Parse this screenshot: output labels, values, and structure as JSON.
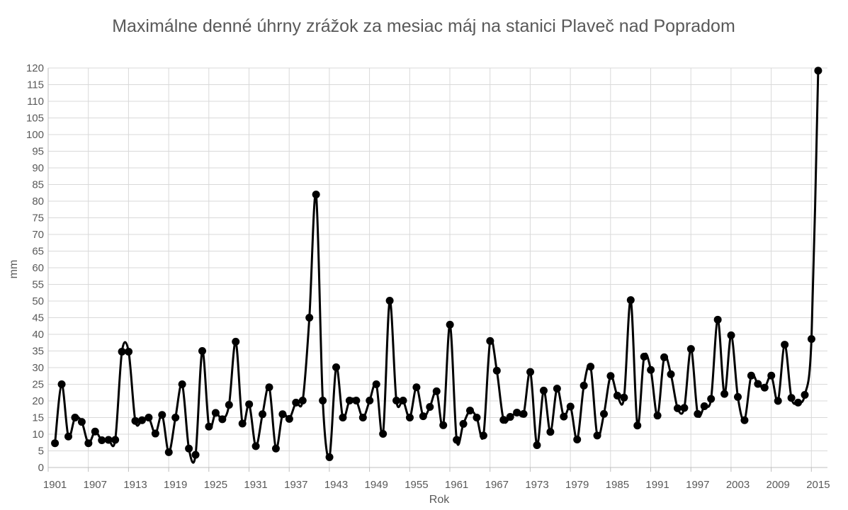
{
  "chart_data": {
    "type": "line",
    "title": "Maximálne denné úhrny zrážok za mesiac máj na stanici Plaveč nad Popradom",
    "xlabel": "Rok",
    "ylabel": "mm",
    "xlim": [
      1901,
      2015
    ],
    "ylim": [
      0,
      120
    ],
    "y_major_unit": 5,
    "x_tick_labels": [
      "1901",
      "1907",
      "1913",
      "1919",
      "1925",
      "1931",
      "1937",
      "1943",
      "1949",
      "1955",
      "1961",
      "1967",
      "1973",
      "1979",
      "1985",
      "1991",
      "1997",
      "2003",
      "2009",
      "2015"
    ],
    "grid": true,
    "legend": "none",
    "series": [
      {
        "color": "#000000",
        "x": [
          1901,
          1902,
          1903,
          1904,
          1905,
          1906,
          1907,
          1908,
          1909,
          1910,
          1911,
          1912,
          1913,
          1914,
          1915,
          1916,
          1917,
          1918,
          1919,
          1920,
          1921,
          1922,
          1923,
          1924,
          1925,
          1926,
          1927,
          1928,
          1929,
          1930,
          1931,
          1932,
          1933,
          1934,
          1935,
          1936,
          1937,
          1938,
          1939,
          1940,
          1941,
          1942,
          1943,
          1944,
          1945,
          1946,
          1947,
          1948,
          1949,
          1950,
          1951,
          1952,
          1953,
          1954,
          1955,
          1956,
          1957,
          1958,
          1959,
          1960,
          1961,
          1962,
          1963,
          1964,
          1965,
          1966,
          1967,
          1968,
          1969,
          1970,
          1971,
          1972,
          1973,
          1974,
          1975,
          1976,
          1977,
          1978,
          1979,
          1980,
          1981,
          1982,
          1983,
          1984,
          1985,
          1986,
          1987,
          1988,
          1989,
          1990,
          1991,
          1992,
          1993,
          1994,
          1995,
          1996,
          1997,
          1998,
          1999,
          2000,
          2001,
          2002,
          2003,
          2004,
          2005,
          2006,
          2007,
          2008,
          2009,
          2010,
          2011,
          2012,
          2013,
          2014,
          2015
        ],
        "values": [
          7.3,
          25,
          9.3,
          15,
          13.7,
          7.3,
          10.8,
          8.2,
          8.3,
          8.3,
          34.8,
          34.8,
          14,
          14.2,
          15,
          10.2,
          15.8,
          4.6,
          15,
          25,
          5.7,
          3.8,
          35,
          12.3,
          16.4,
          14.5,
          18.8,
          37.8,
          13.2,
          19,
          6.4,
          16,
          24.1,
          5.7,
          16,
          14.6,
          19.5,
          20.1,
          45,
          82,
          20.1,
          3.1,
          30.1,
          15,
          20.1,
          20.1,
          15,
          20.1,
          25,
          10.1,
          50.1,
          20.1,
          20.1,
          15,
          24.1,
          15.4,
          18.2,
          22.9,
          12.7,
          42.9,
          8.3,
          13.1,
          17.1,
          15,
          9.6,
          38,
          29.1,
          14.3,
          15.2,
          16.5,
          16.1,
          28.7,
          6.7,
          23.1,
          10.7,
          23.7,
          15.3,
          18.3,
          8.4,
          24.6,
          30.3,
          9.6,
          16.1,
          27.5,
          21.6,
          21,
          50.3,
          12.6,
          33.3,
          29.3,
          15.6,
          33.1,
          28,
          17.8,
          17.9,
          35.6,
          16.1,
          18.4,
          20.6,
          44.4,
          22.1,
          39.7,
          21.2,
          14.2,
          27.6,
          25.1,
          24,
          27.6,
          20,
          36.9,
          20.9,
          19.5,
          21.8,
          38.6,
          119.2
        ]
      }
    ]
  }
}
